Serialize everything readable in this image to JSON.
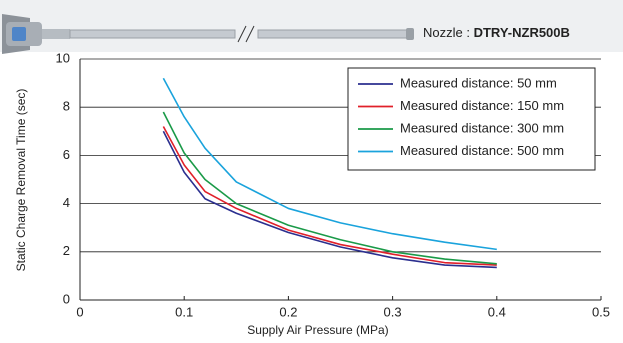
{
  "nozzle_label": {
    "prefix": "Nozzle :",
    "model": "DTRY-NZR500B"
  },
  "chart_data": {
    "type": "line",
    "x_label": "Supply Air Pressure (MPa)",
    "y_label": "Static Charge Removal Time (sec)",
    "x": [
      0.08,
      0.1,
      0.12,
      0.15,
      0.2,
      0.25,
      0.3,
      0.35,
      0.4
    ],
    "series": [
      {
        "name": "Measured distance: 50 mm",
        "color": "#2b2f8f",
        "values": [
          7.0,
          5.3,
          4.2,
          3.6,
          2.8,
          2.2,
          1.75,
          1.45,
          1.35
        ]
      },
      {
        "name": "Measured distance: 150 mm",
        "color": "#e0202a",
        "values": [
          7.2,
          5.6,
          4.5,
          3.8,
          2.9,
          2.3,
          1.9,
          1.55,
          1.45
        ]
      },
      {
        "name": "Measured distance: 300 mm",
        "color": "#1a9a48",
        "values": [
          7.8,
          6.1,
          5.0,
          4.0,
          3.1,
          2.5,
          2.0,
          1.7,
          1.5
        ]
      },
      {
        "name": "Measured distance: 500 mm",
        "color": "#1aa3dc",
        "values": [
          9.2,
          7.6,
          6.3,
          4.9,
          3.8,
          3.2,
          2.75,
          2.4,
          2.1
        ]
      }
    ],
    "xlim": [
      0,
      0.5
    ],
    "xticks": [
      0,
      0.1,
      0.2,
      0.3,
      0.4,
      0.5
    ],
    "ylim": [
      0,
      10
    ],
    "yticks": [
      0,
      2,
      4,
      6,
      8,
      10
    ],
    "grid": true,
    "legend": "upper right"
  }
}
